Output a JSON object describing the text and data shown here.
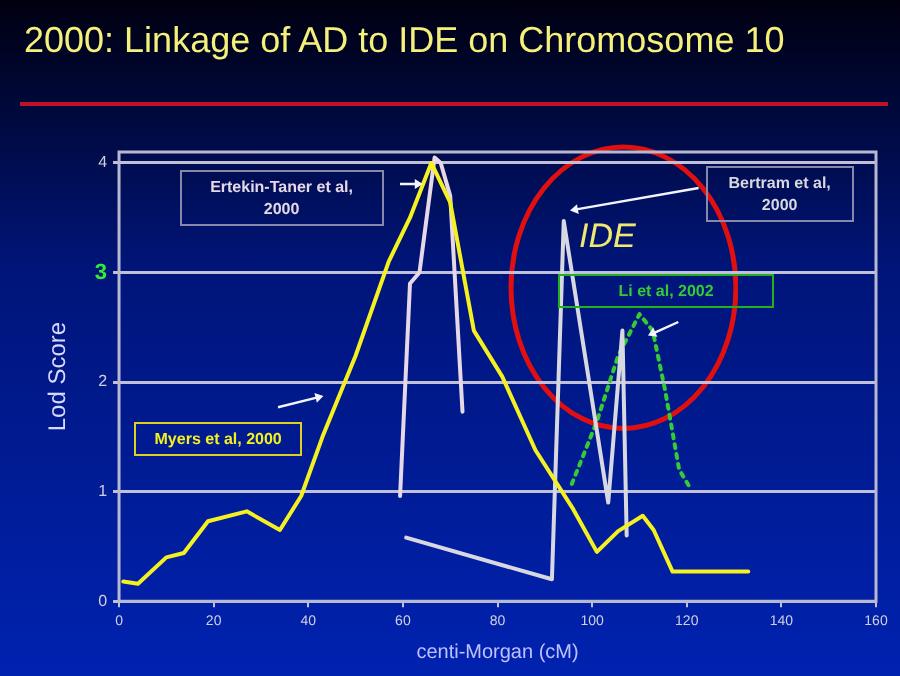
{
  "chart_data": {
    "type": "line",
    "title": "2000: Linkage of AD to IDE on Chromosome 10",
    "xlabel": "centi-Morgan (cM)",
    "ylabel": "Lod Score",
    "xlim": [
      0,
      160
    ],
    "xticks": [
      0,
      20,
      40,
      60,
      80,
      100,
      120,
      140,
      160
    ],
    "ylim": [
      0,
      4.1
    ],
    "yticks": [
      0,
      1,
      2,
      3,
      4
    ],
    "grid": "y",
    "legend": false,
    "marker": "none",
    "annotations": [
      "IDE"
    ],
    "series": [
      {
        "name": "Myers et al, 2000",
        "color": "#f5f020",
        "x": [
          0.9,
          4,
          10,
          13.7,
          18.8,
          27,
          34,
          38.5,
          43,
          50,
          57,
          61.5,
          66,
          70,
          75,
          81,
          88,
          96,
          101,
          105.5,
          110.7,
          113,
          117,
          121,
          133
        ],
        "values": [
          0.18,
          0.16,
          0.4,
          0.44,
          0.73,
          0.82,
          0.65,
          0.96,
          1.5,
          2.24,
          3.1,
          3.5,
          4.0,
          3.64,
          2.47,
          2.05,
          1.38,
          0.84,
          0.45,
          0.64,
          0.78,
          0.65,
          0.27,
          0.27,
          0.27
        ]
      },
      {
        "name": "Ertekin-Taner et al, 2000",
        "color": "#e6d8e6",
        "x": [
          59.4,
          61.5,
          63.5,
          66.7,
          68,
          70,
          72.6
        ],
        "values": [
          0.96,
          2.9,
          3.0,
          4.05,
          4.0,
          3.7,
          1.73
        ]
      },
      {
        "name": "Bertram et al, 2000",
        "color": "#d8d8e0",
        "x": [
          60.7,
          91.5,
          94,
          103.4,
          106.4,
          107.3
        ],
        "values": [
          0.58,
          0.2,
          3.47,
          0.9,
          2.47,
          0.6
        ]
      },
      {
        "name": "Li et al, 2002",
        "color": "#33cc33",
        "line_style": "dotted",
        "x": [
          95.7,
          101,
          105.5,
          110,
          112.8,
          115.4,
          118.4,
          120.5
        ],
        "values": [
          1.07,
          1.64,
          2.24,
          2.62,
          2.47,
          1.93,
          1.2,
          1.05
        ]
      }
    ]
  }
}
